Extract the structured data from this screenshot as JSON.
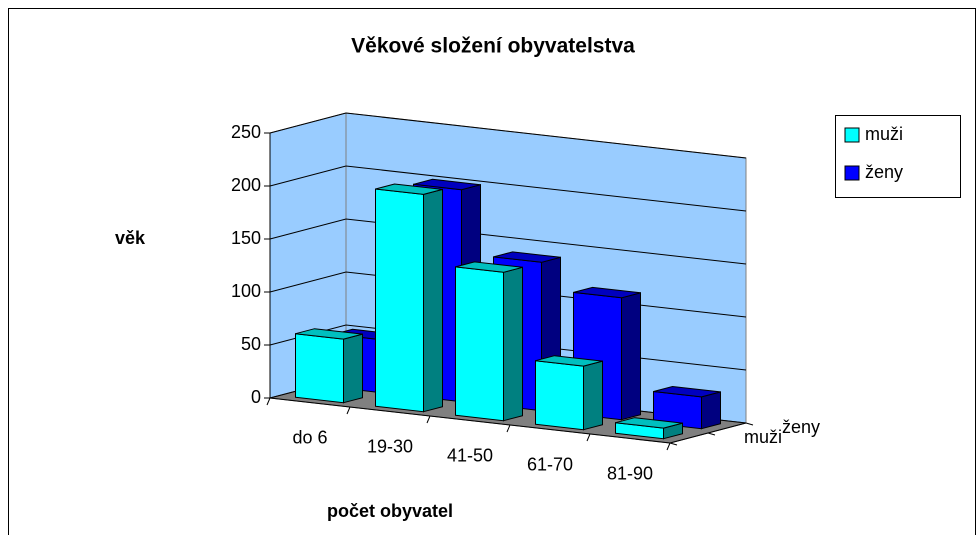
{
  "chart_data": {
    "type": "bar3d",
    "title": "Věkové složení obyvatelstva",
    "y_label": "věk",
    "x_label": "počet obyvatel",
    "categories": [
      "do 6",
      "19-30",
      "41-50",
      "61-70",
      "81-90"
    ],
    "series": [
      {
        "name": "muži",
        "color": "#00ffff",
        "values": [
          60,
          205,
          140,
          60,
          10
        ]
      },
      {
        "name": "ženy",
        "color": "#0000ff",
        "values": [
          50,
          200,
          140,
          115,
          30
        ]
      }
    ],
    "ylim": [
      0,
      250
    ],
    "yticks": [
      0,
      50,
      100,
      150,
      200,
      250
    ],
    "grid": true,
    "legend": "right"
  }
}
